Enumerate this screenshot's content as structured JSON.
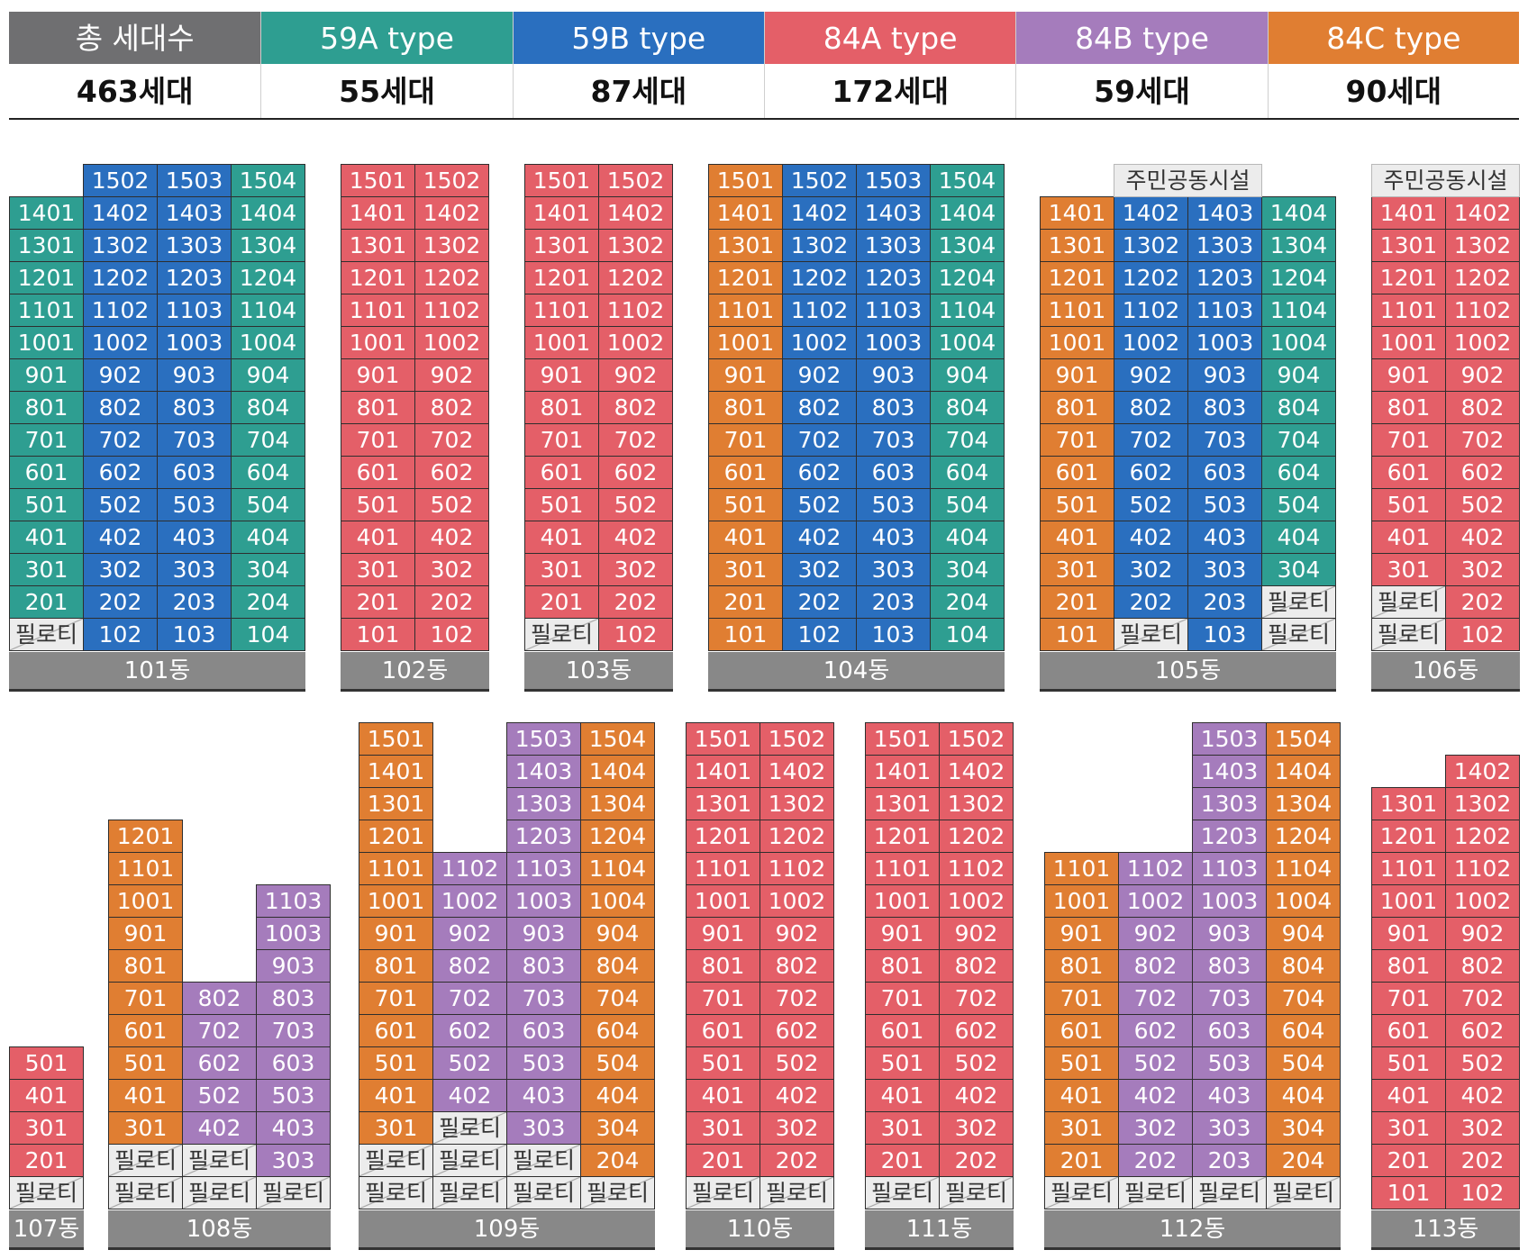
{
  "colors": {
    "total": "#6f6f71",
    "59A": "#2e9e91",
    "59B": "#2a6fbf",
    "84A": "#e45f68",
    "84B": "#a57cbc",
    "84C": "#e07e32",
    "pilotis": "#ececec",
    "label": "#888888"
  },
  "summary": [
    {
      "key": "total",
      "title": "총 세대수",
      "value": "463세대"
    },
    {
      "key": "59A",
      "title": "59A type",
      "value": "55세대"
    },
    {
      "key": "59B",
      "title": "59B type",
      "value": "87세대"
    },
    {
      "key": "84A",
      "title": "84A type",
      "value": "172세대"
    },
    {
      "key": "84B",
      "title": "84B type",
      "value": "59세대"
    },
    {
      "key": "84C",
      "title": "84C type",
      "value": "90세대"
    }
  ],
  "buildings": [
    {
      "label": "101동",
      "units": [
        [
          "",
          "1502:59B",
          "1503:59B",
          "1504:59A"
        ],
        [
          "1401:59A",
          "1402:59B",
          "1403:59B",
          "1404:59A"
        ],
        [
          "1301:59A",
          "1302:59B",
          "1303:59B",
          "1304:59A"
        ],
        [
          "1201:59A",
          "1202:59B",
          "1203:59B",
          "1204:59A"
        ],
        [
          "1101:59A",
          "1102:59B",
          "1103:59B",
          "1104:59A"
        ],
        [
          "1001:59A",
          "1002:59B",
          "1003:59B",
          "1004:59A"
        ],
        [
          "901:59A",
          "902:59B",
          "903:59B",
          "904:59A"
        ],
        [
          "801:59A",
          "802:59B",
          "803:59B",
          "804:59A"
        ],
        [
          "701:59A",
          "702:59B",
          "703:59B",
          "704:59A"
        ],
        [
          "601:59A",
          "602:59B",
          "603:59B",
          "604:59A"
        ],
        [
          "501:59A",
          "502:59B",
          "503:59B",
          "504:59A"
        ],
        [
          "401:59A",
          "402:59B",
          "403:59B",
          "404:59A"
        ],
        [
          "301:59A",
          "302:59B",
          "303:59B",
          "304:59A"
        ],
        [
          "201:59A",
          "202:59B",
          "203:59B",
          "204:59A"
        ],
        [
          "필로티:P",
          "102:59B",
          "103:59B",
          "104:59A"
        ]
      ]
    },
    {
      "label": "102동",
      "units": [
        [
          "1501:84A",
          "1502:84A"
        ],
        [
          "1401:84A",
          "1402:84A"
        ],
        [
          "1301:84A",
          "1302:84A"
        ],
        [
          "1201:84A",
          "1202:84A"
        ],
        [
          "1101:84A",
          "1102:84A"
        ],
        [
          "1001:84A",
          "1002:84A"
        ],
        [
          "901:84A",
          "902:84A"
        ],
        [
          "801:84A",
          "802:84A"
        ],
        [
          "701:84A",
          "702:84A"
        ],
        [
          "601:84A",
          "602:84A"
        ],
        [
          "501:84A",
          "502:84A"
        ],
        [
          "401:84A",
          "402:84A"
        ],
        [
          "301:84A",
          "302:84A"
        ],
        [
          "201:84A",
          "202:84A"
        ],
        [
          "101:84A",
          "102:84A"
        ]
      ]
    },
    {
      "label": "103동",
      "units": [
        [
          "1501:84A",
          "1502:84A"
        ],
        [
          "1401:84A",
          "1402:84A"
        ],
        [
          "1301:84A",
          "1302:84A"
        ],
        [
          "1201:84A",
          "1202:84A"
        ],
        [
          "1101:84A",
          "1102:84A"
        ],
        [
          "1001:84A",
          "1002:84A"
        ],
        [
          "901:84A",
          "902:84A"
        ],
        [
          "801:84A",
          "802:84A"
        ],
        [
          "701:84A",
          "702:84A"
        ],
        [
          "601:84A",
          "602:84A"
        ],
        [
          "501:84A",
          "502:84A"
        ],
        [
          "401:84A",
          "402:84A"
        ],
        [
          "301:84A",
          "302:84A"
        ],
        [
          "201:84A",
          "202:84A"
        ],
        [
          "필로티:P",
          "102:84A"
        ]
      ]
    },
    {
      "label": "104동",
      "units": [
        [
          "1501:84C",
          "1502:59B",
          "1503:59B",
          "1504:59A"
        ],
        [
          "1401:84C",
          "1402:59B",
          "1403:59B",
          "1404:59A"
        ],
        [
          "1301:84C",
          "1302:59B",
          "1303:59B",
          "1304:59A"
        ],
        [
          "1201:84C",
          "1202:59B",
          "1203:59B",
          "1204:59A"
        ],
        [
          "1101:84C",
          "1102:59B",
          "1103:59B",
          "1104:59A"
        ],
        [
          "1001:84C",
          "1002:59B",
          "1003:59B",
          "1004:59A"
        ],
        [
          "901:84C",
          "902:59B",
          "903:59B",
          "904:59A"
        ],
        [
          "801:84C",
          "802:59B",
          "803:59B",
          "804:59A"
        ],
        [
          "701:84C",
          "702:59B",
          "703:59B",
          "704:59A"
        ],
        [
          "601:84C",
          "602:59B",
          "603:59B",
          "604:59A"
        ],
        [
          "501:84C",
          "502:59B",
          "503:59B",
          "504:59A"
        ],
        [
          "401:84C",
          "402:59B",
          "403:59B",
          "404:59A"
        ],
        [
          "301:84C",
          "302:59B",
          "303:59B",
          "304:59A"
        ],
        [
          "201:84C",
          "202:59B",
          "203:59B",
          "204:59A"
        ],
        [
          "101:84C",
          "102:59B",
          "103:59B",
          "104:59A"
        ]
      ]
    },
    {
      "label": "105동",
      "facility": {
        "text": "주민공동시설",
        "span": [
          1,
          2
        ]
      },
      "units": [
        [
          "",
          "",
          "",
          ""
        ],
        [
          "1401:84C",
          "1402:59B",
          "1403:59B",
          "1404:59A"
        ],
        [
          "1301:84C",
          "1302:59B",
          "1303:59B",
          "1304:59A"
        ],
        [
          "1201:84C",
          "1202:59B",
          "1203:59B",
          "1204:59A"
        ],
        [
          "1101:84C",
          "1102:59B",
          "1103:59B",
          "1104:59A"
        ],
        [
          "1001:84C",
          "1002:59B",
          "1003:59B",
          "1004:59A"
        ],
        [
          "901:84C",
          "902:59B",
          "903:59B",
          "904:59A"
        ],
        [
          "801:84C",
          "802:59B",
          "803:59B",
          "804:59A"
        ],
        [
          "701:84C",
          "702:59B",
          "703:59B",
          "704:59A"
        ],
        [
          "601:84C",
          "602:59B",
          "603:59B",
          "604:59A"
        ],
        [
          "501:84C",
          "502:59B",
          "503:59B",
          "504:59A"
        ],
        [
          "401:84C",
          "402:59B",
          "403:59B",
          "404:59A"
        ],
        [
          "301:84C",
          "302:59B",
          "303:59B",
          "304:59A"
        ],
        [
          "201:84C",
          "202:59B",
          "203:59B",
          "필로티:P"
        ],
        [
          "101:84C",
          "필로티:P",
          "103:59B",
          "필로티:P"
        ]
      ]
    },
    {
      "label": "106동",
      "facility": {
        "text": "주민공동시설",
        "span": [
          0,
          2
        ]
      },
      "units": [
        [
          "",
          ""
        ],
        [
          "1401:84A",
          "1402:84A"
        ],
        [
          "1301:84A",
          "1302:84A"
        ],
        [
          "1201:84A",
          "1202:84A"
        ],
        [
          "1101:84A",
          "1102:84A"
        ],
        [
          "1001:84A",
          "1002:84A"
        ],
        [
          "901:84A",
          "902:84A"
        ],
        [
          "801:84A",
          "802:84A"
        ],
        [
          "701:84A",
          "702:84A"
        ],
        [
          "601:84A",
          "602:84A"
        ],
        [
          "501:84A",
          "502:84A"
        ],
        [
          "401:84A",
          "402:84A"
        ],
        [
          "301:84A",
          "302:84A"
        ],
        [
          "필로티:P",
          "202:84A"
        ],
        [
          "필로티:P",
          "102:84A"
        ]
      ]
    },
    {
      "label": "107동",
      "units": [
        [
          "501:84A"
        ],
        [
          "401:84A"
        ],
        [
          "301:84A"
        ],
        [
          "201:84A"
        ],
        [
          "필로티:P"
        ]
      ]
    },
    {
      "label": "108동",
      "units": [
        [
          "1201:84C",
          "",
          ""
        ],
        [
          "1101:84C",
          "",
          ""
        ],
        [
          "1001:84C",
          "",
          "1103:84B"
        ],
        [
          "901:84C",
          "",
          "1003:84B"
        ],
        [
          "801:84C",
          "",
          "903:84B"
        ],
        [
          "701:84C",
          "802:84B",
          "803:84B"
        ],
        [
          "601:84C",
          "702:84B",
          "703:84B"
        ],
        [
          "501:84C",
          "602:84B",
          "603:84B"
        ],
        [
          "401:84C",
          "502:84B",
          "503:84B"
        ],
        [
          "301:84C",
          "402:84B",
          "403:84B"
        ],
        [
          "필로티:P",
          "필로티:P",
          "303:84B"
        ],
        [
          "필로티:P",
          "필로티:P",
          "필로티:P"
        ]
      ]
    },
    {
      "label": "109동",
      "units": [
        [
          "1501:84C",
          "",
          "1503:84B",
          "1504:84C"
        ],
        [
          "1401:84C",
          "",
          "1403:84B",
          "1404:84C"
        ],
        [
          "1301:84C",
          "",
          "1303:84B",
          "1304:84C"
        ],
        [
          "1201:84C",
          "",
          "1203:84B",
          "1204:84C"
        ],
        [
          "1101:84C",
          "1102:84B",
          "1103:84B",
          "1104:84C"
        ],
        [
          "1001:84C",
          "1002:84B",
          "1003:84B",
          "1004:84C"
        ],
        [
          "901:84C",
          "902:84B",
          "903:84B",
          "904:84C"
        ],
        [
          "801:84C",
          "802:84B",
          "803:84B",
          "804:84C"
        ],
        [
          "701:84C",
          "702:84B",
          "703:84B",
          "704:84C"
        ],
        [
          "601:84C",
          "602:84B",
          "603:84B",
          "604:84C"
        ],
        [
          "501:84C",
          "502:84B",
          "503:84B",
          "504:84C"
        ],
        [
          "401:84C",
          "402:84B",
          "403:84B",
          "404:84C"
        ],
        [
          "301:84C",
          "필로티:P",
          "303:84B",
          "304:84C"
        ],
        [
          "필로티:P",
          "필로티:P",
          "필로티:P",
          "204:84C"
        ],
        [
          "필로티:P",
          "필로티:P",
          "필로티:P",
          "필로티:P"
        ]
      ]
    },
    {
      "label": "110동",
      "units": [
        [
          "1501:84A",
          "1502:84A"
        ],
        [
          "1401:84A",
          "1402:84A"
        ],
        [
          "1301:84A",
          "1302:84A"
        ],
        [
          "1201:84A",
          "1202:84A"
        ],
        [
          "1101:84A",
          "1102:84A"
        ],
        [
          "1001:84A",
          "1002:84A"
        ],
        [
          "901:84A",
          "902:84A"
        ],
        [
          "801:84A",
          "802:84A"
        ],
        [
          "701:84A",
          "702:84A"
        ],
        [
          "601:84A",
          "602:84A"
        ],
        [
          "501:84A",
          "502:84A"
        ],
        [
          "401:84A",
          "402:84A"
        ],
        [
          "301:84A",
          "302:84A"
        ],
        [
          "201:84A",
          "202:84A"
        ],
        [
          "필로티:P",
          "필로티:P"
        ]
      ]
    },
    {
      "label": "111동",
      "units": [
        [
          "1501:84A",
          "1502:84A"
        ],
        [
          "1401:84A",
          "1402:84A"
        ],
        [
          "1301:84A",
          "1302:84A"
        ],
        [
          "1201:84A",
          "1202:84A"
        ],
        [
          "1101:84A",
          "1102:84A"
        ],
        [
          "1001:84A",
          "1002:84A"
        ],
        [
          "901:84A",
          "902:84A"
        ],
        [
          "801:84A",
          "802:84A"
        ],
        [
          "701:84A",
          "702:84A"
        ],
        [
          "601:84A",
          "602:84A"
        ],
        [
          "501:84A",
          "502:84A"
        ],
        [
          "401:84A",
          "402:84A"
        ],
        [
          "301:84A",
          "302:84A"
        ],
        [
          "201:84A",
          "202:84A"
        ],
        [
          "필로티:P",
          "필로티:P"
        ]
      ]
    },
    {
      "label": "112동",
      "units": [
        [
          "",
          "",
          "1503:84B",
          "1504:84C"
        ],
        [
          "",
          "",
          "1403:84B",
          "1404:84C"
        ],
        [
          "",
          "",
          "1303:84B",
          "1304:84C"
        ],
        [
          "",
          "",
          "1203:84B",
          "1204:84C"
        ],
        [
          "1101:84C",
          "1102:84B",
          "1103:84B",
          "1104:84C"
        ],
        [
          "1001:84C",
          "1002:84B",
          "1003:84B",
          "1004:84C"
        ],
        [
          "901:84C",
          "902:84B",
          "903:84B",
          "904:84C"
        ],
        [
          "801:84C",
          "802:84B",
          "803:84B",
          "804:84C"
        ],
        [
          "701:84C",
          "702:84B",
          "703:84B",
          "704:84C"
        ],
        [
          "601:84C",
          "602:84B",
          "603:84B",
          "604:84C"
        ],
        [
          "501:84C",
          "502:84B",
          "503:84B",
          "504:84C"
        ],
        [
          "401:84C",
          "402:84B",
          "403:84B",
          "404:84C"
        ],
        [
          "301:84C",
          "302:84B",
          "303:84B",
          "304:84C"
        ],
        [
          "201:84C",
          "202:84B",
          "203:84B",
          "204:84C"
        ],
        [
          "필로티:P",
          "필로티:P",
          "필로티:P",
          "필로티:P"
        ]
      ]
    },
    {
      "label": "113동",
      "units": [
        [
          "",
          "1402:84A"
        ],
        [
          "1301:84A",
          "1302:84A"
        ],
        [
          "1201:84A",
          "1202:84A"
        ],
        [
          "1101:84A",
          "1102:84A"
        ],
        [
          "1001:84A",
          "1002:84A"
        ],
        [
          "901:84A",
          "902:84A"
        ],
        [
          "801:84A",
          "802:84A"
        ],
        [
          "701:84A",
          "702:84A"
        ],
        [
          "601:84A",
          "602:84A"
        ],
        [
          "501:84A",
          "502:84A"
        ],
        [
          "401:84A",
          "402:84A"
        ],
        [
          "301:84A",
          "302:84A"
        ],
        [
          "201:84A",
          "202:84A"
        ],
        [
          "101:84A",
          "102:84A"
        ]
      ]
    }
  ]
}
